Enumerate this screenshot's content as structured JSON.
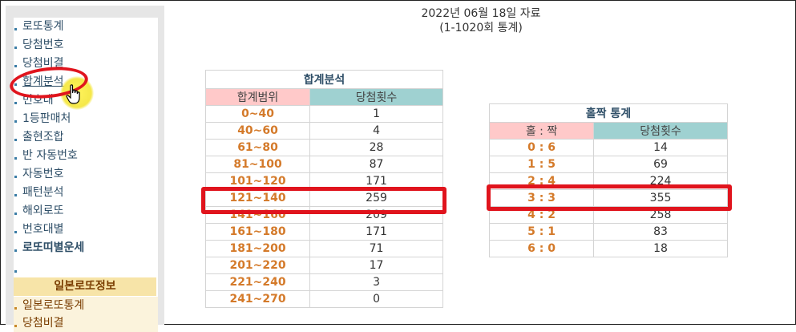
{
  "report": {
    "date_text": "2022년 06월 18일 자료",
    "range_text": "(1-1020회 통계)"
  },
  "sidebar": {
    "items": [
      {
        "label": "로또통계"
      },
      {
        "label": "당첨번호"
      },
      {
        "label": "당첨비결"
      },
      {
        "label": "합계분석"
      },
      {
        "label": "번호대"
      },
      {
        "label": "1등판매처"
      },
      {
        "label": "출현조합"
      },
      {
        "label": "반 자동번호"
      },
      {
        "label": "자동번호"
      },
      {
        "label": "패턴분석"
      },
      {
        "label": "해외로또"
      },
      {
        "label": "번호대별"
      },
      {
        "label": "로또띠별운세"
      }
    ],
    "japan_section_title": "일본로또정보",
    "japan_items": [
      {
        "label": "일본로또통계"
      },
      {
        "label": "당첨비결"
      }
    ]
  },
  "sum_table": {
    "caption": "합계분석",
    "col_range": "합계범위",
    "col_count": "당첨횟수",
    "rows": [
      {
        "range": "0~40",
        "count": "1"
      },
      {
        "range": "40~60",
        "count": "4"
      },
      {
        "range": "61~80",
        "count": "28"
      },
      {
        "range": "81~100",
        "count": "87"
      },
      {
        "range": "101~120",
        "count": "171"
      },
      {
        "range": "121~140",
        "count": "259"
      },
      {
        "range": "141~160",
        "count": "209"
      },
      {
        "range": "161~180",
        "count": "171"
      },
      {
        "range": "181~200",
        "count": "71"
      },
      {
        "range": "201~220",
        "count": "17"
      },
      {
        "range": "221~240",
        "count": "3"
      },
      {
        "range": "241~270",
        "count": "0"
      }
    ]
  },
  "oddeven_table": {
    "caption": "홀짝 통계",
    "col_ratio": "홀 : 짝",
    "col_count": "당첨횟수",
    "rows": [
      {
        "ratio": "0 : 6",
        "count": "14"
      },
      {
        "ratio": "1 : 5",
        "count": "69"
      },
      {
        "ratio": "2 : 4",
        "count": "224"
      },
      {
        "ratio": "3 : 3",
        "count": "355"
      },
      {
        "ratio": "4 : 2",
        "count": "258"
      },
      {
        "ratio": "5 : 1",
        "count": "83"
      },
      {
        "ratio": "6 : 0",
        "count": "18"
      }
    ]
  },
  "colors": {
    "accent_red": "#e0141d",
    "range_text": "#d47a2a",
    "header_pink": "#ffc9c9",
    "header_teal": "#9fd1d1",
    "highlight_yellow": "#f5e84a"
  },
  "icons": {
    "cursor": "hand-pointer-icon",
    "bullet": "square-bullet-icon"
  }
}
